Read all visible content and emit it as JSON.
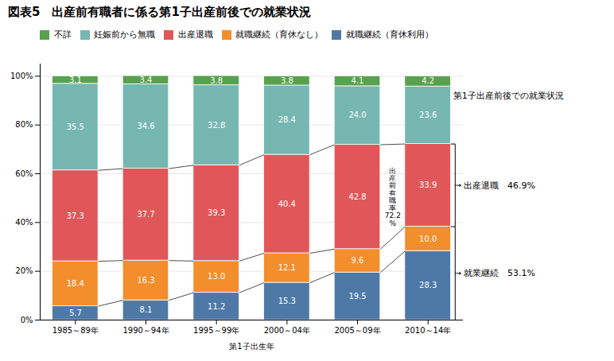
{
  "chart_data": {
    "type": "bar",
    "title": "図表5　出産前有職者に係る第1子出産前後での就業状況",
    "categories": [
      "1985～89年",
      "1990～94年",
      "1995～99年",
      "2000～04年",
      "2005～09年",
      "2010～14年"
    ],
    "xlabel": "第1子出生年",
    "stacked": true,
    "series": [
      {
        "name": "就職継続（育休利用）",
        "values": [
          5.7,
          8.1,
          11.2,
          15.3,
          19.5,
          28.3
        ]
      },
      {
        "name": "就職継続（育休なし）",
        "values": [
          18.4,
          16.3,
          13.0,
          12.1,
          9.6,
          10.0
        ],
        "value_labels": [
          "18.4",
          "16.3",
          "13.0",
          "12.1",
          "9.6",
          "10.0"
        ]
      },
      {
        "name": "出産退職",
        "values": [
          37.3,
          37.7,
          39.3,
          40.4,
          42.8,
          33.9
        ]
      },
      {
        "name": "妊娠前から無職",
        "values": [
          35.5,
          34.6,
          32.8,
          28.4,
          24.0,
          23.6
        ],
        "value_labels": [
          "35.5",
          "34.6",
          "32.8",
          "28.4",
          "24.0",
          "23.6"
        ]
      },
      {
        "name": "不詳",
        "values": [
          3.1,
          3.4,
          3.8,
          3.8,
          4.1,
          4.2
        ]
      }
    ],
    "ylim": [
      0,
      105
    ],
    "yticks": [
      {
        "value": 0,
        "label": "0%"
      },
      {
        "value": 20,
        "label": "20%"
      },
      {
        "value": 40,
        "label": "40%"
      },
      {
        "value": 60,
        "label": "60%"
      },
      {
        "value": 80,
        "label": "80%"
      },
      {
        "value": 100,
        "label": "100%"
      }
    ],
    "grid": true,
    "legend": "top",
    "data_labels": true,
    "annotations": [
      "第1子出産前後での就業状況",
      "出産退職　46.9%",
      "就業継続　53.1%",
      "出産前有職率72.2%"
    ]
  }
}
